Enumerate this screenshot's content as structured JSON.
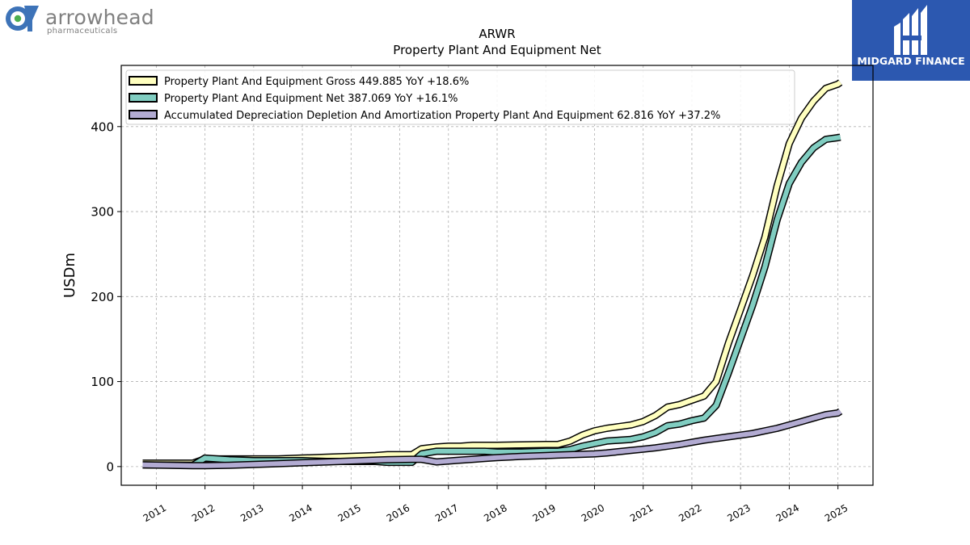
{
  "company": {
    "name": "arrowhead",
    "subtitle": "pharmaceuticals"
  },
  "brand": {
    "name": "MIDGARD FINANCE",
    "color": "#2c58b0"
  },
  "chart_data": {
    "type": "line",
    "title": "ARWR",
    "subtitle": "Property Plant And Equipment Net",
    "ylabel": "USDm",
    "xlabel": "",
    "ylim": [
      -22,
      472
    ],
    "xlim": [
      2010.28,
      2025.72
    ],
    "yticks": [
      0,
      100,
      200,
      300,
      400
    ],
    "xticks": [
      "2011",
      "2012",
      "2013",
      "2014",
      "2015",
      "2016",
      "2017",
      "2018",
      "2019",
      "2020",
      "2021",
      "2022",
      "2023",
      "2024",
      "2025"
    ],
    "grid": true,
    "legend_position": "top-left",
    "series": [
      {
        "name": "Property Plant And Equipment Gross",
        "legend_label": "Property Plant And Equipment Gross  449.885 YoY +18.6%",
        "color": "#ffffbf",
        "x": [
          2010.72,
          2011.75,
          2012.0,
          2012.5,
          2013.0,
          2013.5,
          2014.0,
          2014.5,
          2015.0,
          2015.5,
          2015.75,
          2016.25,
          2016.45,
          2016.75,
          2017.0,
          2017.25,
          2017.5,
          2017.75,
          2018.0,
          2018.5,
          2019.0,
          2019.25,
          2019.5,
          2019.75,
          2020.0,
          2020.25,
          2020.5,
          2020.75,
          2021.0,
          2021.25,
          2021.5,
          2021.75,
          2022.0,
          2022.25,
          2022.5,
          2022.75,
          2023.0,
          2023.25,
          2023.5,
          2023.75,
          2024.0,
          2024.25,
          2024.5,
          2024.75,
          2025.0,
          2025.05
        ],
        "y": [
          4,
          4,
          9,
          9,
          9,
          9,
          10,
          11,
          12,
          13,
          14,
          14,
          21,
          23,
          24,
          24,
          25,
          25,
          25,
          25.5,
          26,
          26,
          30,
          37,
          42,
          45,
          47,
          49,
          53,
          60,
          70,
          73,
          78,
          83,
          100,
          145,
          185,
          225,
          270,
          330,
          380,
          410,
          430,
          445,
          450,
          452
        ]
      },
      {
        "name": "Property Plant And Equipment Net",
        "legend_label": "Property Plant And Equipment Net  387.069 YoY +16.1%",
        "color": "#80cdc1",
        "x": [
          2010.72,
          2011.75,
          2012.0,
          2012.5,
          2013.0,
          2013.5,
          2014.0,
          2014.5,
          2015.0,
          2015.5,
          2015.75,
          2016.25,
          2016.45,
          2016.75,
          2017.0,
          2017.25,
          2017.5,
          2017.75,
          2018.0,
          2018.5,
          2019.0,
          2019.25,
          2019.5,
          2019.75,
          2020.0,
          2020.25,
          2020.5,
          2020.75,
          2021.0,
          2021.25,
          2021.5,
          2021.75,
          2022.0,
          2022.25,
          2022.5,
          2022.75,
          2023.0,
          2023.25,
          2023.5,
          2023.75,
          2024.0,
          2024.25,
          2024.5,
          2024.75,
          2025.0,
          2025.05
        ],
        "y": [
          2,
          1.5,
          10,
          8,
          7,
          7,
          7,
          6,
          6,
          6,
          5,
          5,
          15,
          18,
          18,
          18,
          18,
          18,
          17,
          17,
          18,
          18,
          20,
          24,
          27,
          30,
          31,
          32,
          35,
          40,
          48,
          50,
          54,
          57,
          72,
          110,
          150,
          190,
          235,
          290,
          333,
          358,
          375,
          385,
          387,
          387.5
        ]
      },
      {
        "name": "Accumulated Depreciation Depletion And Amortization Property Plant And Equipment",
        "legend_label": "Accumulated Depreciation Depletion And Amortization Property Plant And Equipment  62.816 YoY +37.2%",
        "color": "#b2abd2",
        "x": [
          2010.72,
          2011.75,
          2012.0,
          2012.5,
          2013.0,
          2013.5,
          2014.0,
          2014.5,
          2015.0,
          2015.5,
          2015.75,
          2016.25,
          2016.45,
          2016.75,
          2017.0,
          2017.25,
          2017.5,
          2017.75,
          2018.0,
          2018.5,
          2019.0,
          2019.25,
          2019.5,
          2019.75,
          2020.0,
          2020.25,
          2020.5,
          2020.75,
          2021.0,
          2021.25,
          2021.5,
          2021.75,
          2022.0,
          2022.25,
          2022.5,
          2022.75,
          2023.0,
          2023.25,
          2023.5,
          2023.75,
          2024.0,
          2024.25,
          2024.5,
          2024.75,
          2025.0,
          2025.05
        ],
        "y": [
          2,
          1,
          1,
          1.5,
          2.5,
          3.5,
          4.5,
          5.5,
          6.5,
          7.5,
          8,
          8.5,
          8.5,
          5.5,
          6.5,
          7.5,
          8.5,
          9.5,
          10.5,
          12,
          13,
          13.5,
          14,
          14.5,
          15,
          16,
          17.5,
          19,
          20.5,
          22,
          24,
          26,
          28.5,
          31,
          33,
          35,
          37,
          39,
          42,
          45,
          49,
          53,
          57,
          61,
          63,
          65
        ]
      }
    ]
  }
}
